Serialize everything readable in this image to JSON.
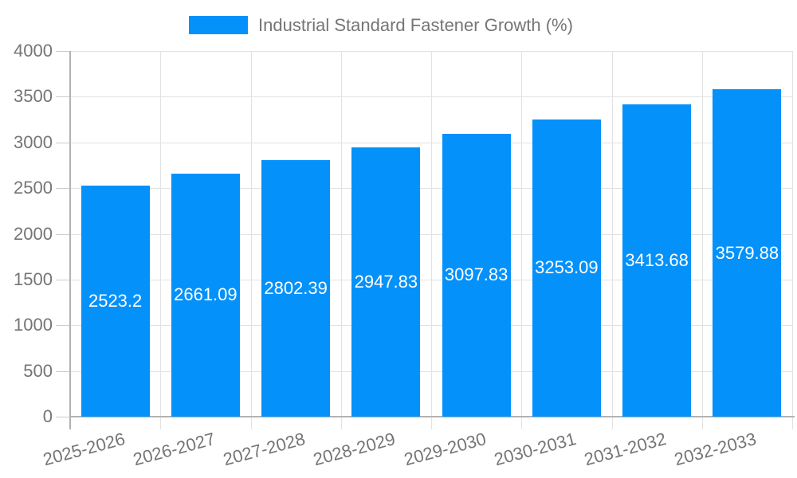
{
  "chart_data": {
    "type": "bar",
    "title": "Industrial Standard Fastener Growth (%)",
    "categories": [
      "2025-2026",
      "2026-2027",
      "2027-2028",
      "2028-2029",
      "2029-2030",
      "2030-2031",
      "2031-2032",
      "2032-2033"
    ],
    "values": [
      2523.2,
      2661.09,
      2802.39,
      2947.83,
      3097.83,
      3253.09,
      3413.68,
      3579.88
    ],
    "value_labels": [
      "2523.2",
      "2661.09",
      "2802.39",
      "2947.83",
      "3097.83",
      "3253.09",
      "3413.68",
      "3579.88"
    ],
    "xlabel": "",
    "ylabel": "",
    "ylim": [
      0,
      4000
    ],
    "y_ticks": [
      0,
      500,
      1000,
      1500,
      2000,
      2500,
      3000,
      3500,
      4000
    ],
    "y_tick_labels": [
      "0",
      "500",
      "1000",
      "1500",
      "2000",
      "2500",
      "3000",
      "3500",
      "4000"
    ],
    "grid": true,
    "legend_position": "top-center",
    "colors": {
      "bar": "#0591fa",
      "bar_label_text": "#ffffff",
      "axis_text": "#757575",
      "legend_text": "#757575",
      "gridline": "#e2e2e2",
      "tick": "#cccccc",
      "axis_line": "#b2b2b2",
      "background": "#ffffff"
    }
  }
}
